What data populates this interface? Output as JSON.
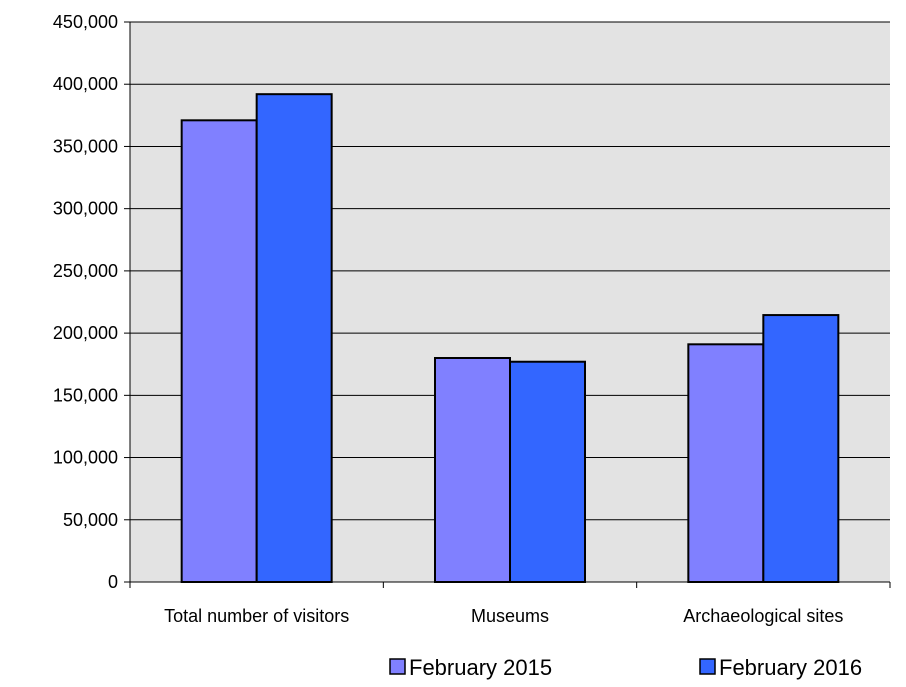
{
  "chart_data": {
    "type": "bar",
    "categories": [
      "Total number of visitors",
      "Museums",
      "Archaeological sites"
    ],
    "series": [
      {
        "name": "February 2015",
        "values": [
          371000,
          180000,
          191000
        ],
        "color": "#8080FF"
      },
      {
        "name": "February 2016",
        "values": [
          392000,
          177000,
          214500
        ],
        "color": "#3366FF"
      }
    ],
    "ylim": [
      0,
      450000
    ],
    "yticks": [
      0,
      50000,
      100000,
      150000,
      200000,
      250000,
      300000,
      350000,
      400000,
      450000
    ],
    "ytick_labels": [
      "0",
      "50,000",
      "100,000",
      "150,000",
      "200,000",
      "250,000",
      "300,000",
      "350,000",
      "400,000",
      "450,000"
    ],
    "grid": true,
    "legend_position": "bottom-right",
    "colors": {
      "plot_background": "#E3E3E3",
      "gridline": "#000000",
      "bar_outline": "#000000"
    }
  }
}
